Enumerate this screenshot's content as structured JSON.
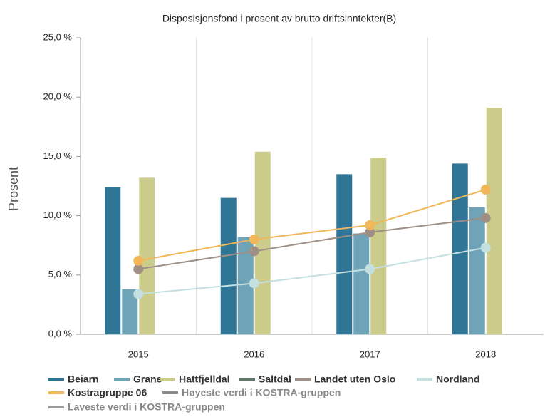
{
  "chart_data": {
    "type": "bar",
    "title": "Disposisjonsfond i prosent av brutto driftsinntekter(B)",
    "y_label": "Prosent",
    "categories": [
      "2015",
      "2016",
      "2017",
      "2018"
    ],
    "ylim": [
      0,
      25
    ],
    "yticks": [
      {
        "value": 0,
        "label": "0,0 %"
      },
      {
        "value": 5,
        "label": "5,0 %"
      },
      {
        "value": 10,
        "label": "10,0 %"
      },
      {
        "value": 15,
        "label": "15,0 %"
      },
      {
        "value": 20,
        "label": "20,0 %"
      },
      {
        "value": 25,
        "label": "25,0 %"
      }
    ],
    "grid": true,
    "series": [
      {
        "name": "Beiarn",
        "color": "#2e7596",
        "mark": "bar",
        "values": [
          12.4,
          11.5,
          13.5,
          14.4
        ]
      },
      {
        "name": "Grane",
        "color": "#6fa3b8",
        "mark": "bar",
        "values": [
          3.8,
          8.2,
          8.5,
          10.7
        ]
      },
      {
        "name": "Hattfjelldal",
        "color": "#cbcb8c",
        "mark": "bar",
        "values": [
          13.2,
          15.4,
          14.9,
          19.1
        ]
      },
      {
        "name": "Saltdal",
        "color": "#5f7868",
        "mark": "bar",
        "values": [
          null,
          null,
          null,
          null
        ]
      },
      {
        "name": "Landet uten Oslo",
        "color": "#a08f84",
        "mark": "line",
        "values": [
          5.5,
          7.0,
          8.6,
          9.8
        ]
      },
      {
        "name": "Nordland",
        "color": "#c4dfe0",
        "mark": "line",
        "values": [
          3.4,
          4.3,
          5.5,
          7.3
        ]
      },
      {
        "name": "Kostragruppe 06",
        "color": "#f0b657",
        "mark": "line",
        "values": [
          6.2,
          8.0,
          9.2,
          12.2
        ]
      },
      {
        "name": "Høyeste verdi i KOSTRA-gruppen",
        "color": "#8c8c8c",
        "mark": "line",
        "values": [
          null,
          null,
          null,
          null
        ]
      },
      {
        "name": "Laveste verdi i KOSTRA-gruppen",
        "color": "#9a9a9a",
        "mark": "line",
        "values": [
          null,
          null,
          null,
          null
        ]
      }
    ]
  }
}
